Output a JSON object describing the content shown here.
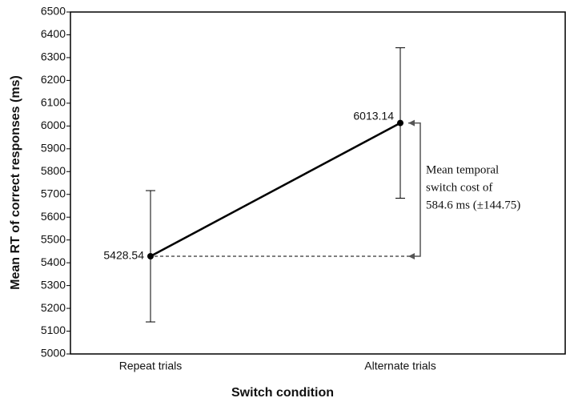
{
  "chart_data": {
    "type": "line",
    "x_label": "Switch condition",
    "y_label": "Mean RT of correct responses (ms)",
    "categories": [
      "Repeat trials",
      "Alternate trials"
    ],
    "values": [
      5428.54,
      6013.14
    ],
    "errors": [
      288,
      330
    ],
    "color": "#000000",
    "ylim": [
      5000,
      6500
    ],
    "yticks": [
      5000,
      5100,
      5200,
      5300,
      5400,
      5500,
      5600,
      5700,
      5800,
      5900,
      6000,
      6100,
      6200,
      6300,
      6400,
      6500
    ],
    "annotation": [
      "Mean temporal",
      "switch cost of",
      "584.6 ms (±144.75)"
    ]
  }
}
